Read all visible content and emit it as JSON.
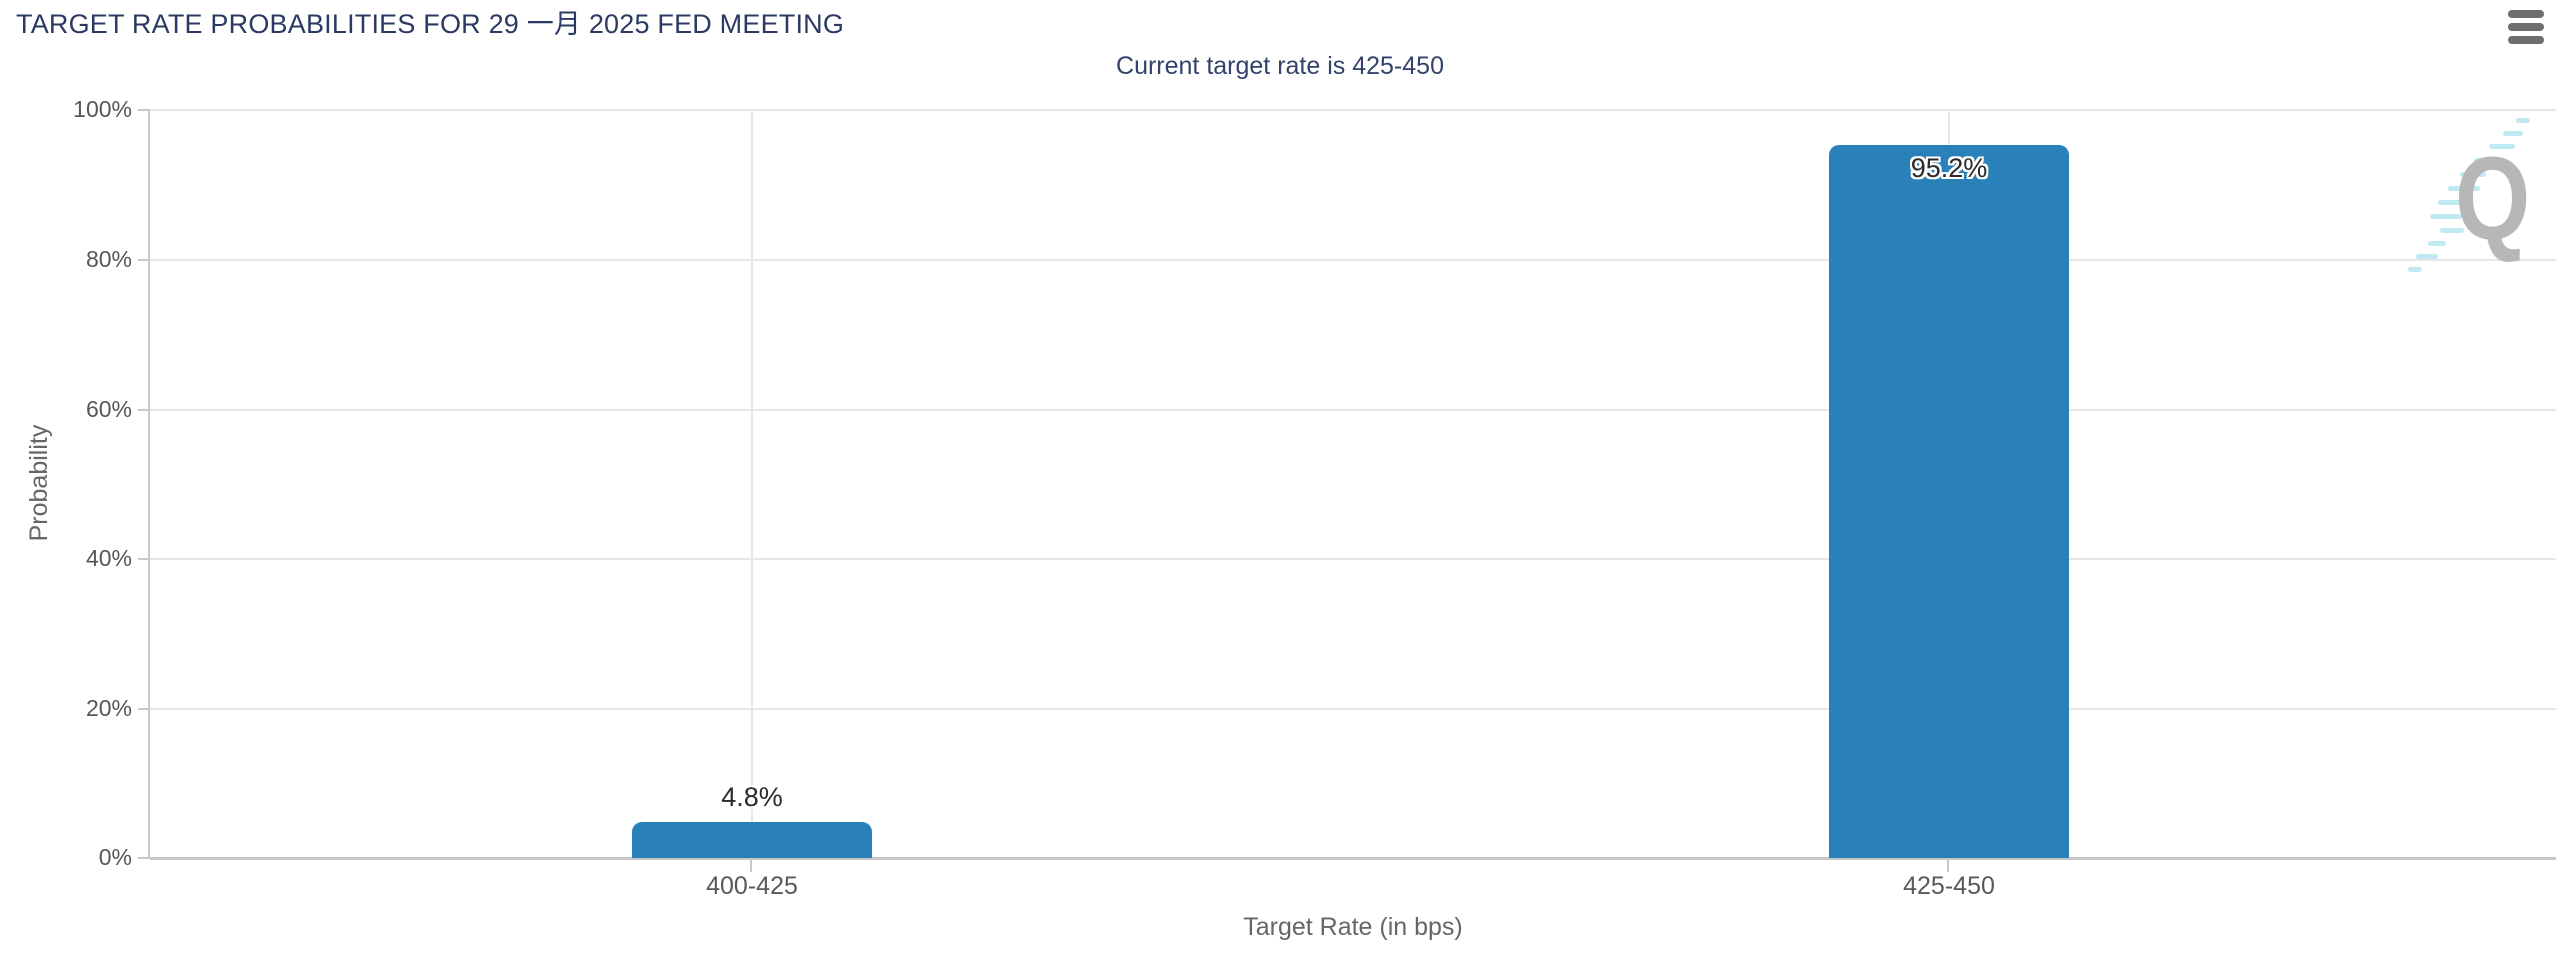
{
  "header": {
    "title": "TARGET RATE PROBABILITIES FOR 29 一月 2025 FED MEETING",
    "menu_tooltip": "Chart context menu"
  },
  "chart_data": {
    "type": "bar",
    "title": "TARGET RATE PROBABILITIES FOR 29 一月 2025 FED MEETING",
    "subtitle": "Current target rate is 425-450",
    "categories": [
      "400-425",
      "425-450"
    ],
    "values": [
      4.8,
      95.2
    ],
    "value_labels": [
      "4.8%",
      "95.2%"
    ],
    "xlabel": "Target Rate (in bps)",
    "ylabel": "Probability",
    "ylim": [
      0,
      100
    ],
    "ytick_labels": [
      "0%",
      "20%",
      "40%",
      "60%",
      "80%",
      "100%"
    ],
    "grid": true,
    "legend_position": "none",
    "bar_color": "#2a80b9"
  },
  "watermark": {
    "letter": "Q"
  },
  "colors": {
    "title_text": "#2b3a62",
    "subtitle_text": "#32426b",
    "bar": "#2a80b9",
    "axis_tick_text": "#575757",
    "axis_title_text": "#666666",
    "gridline": "#e6e6e6",
    "axis_line": "#c9c9c9",
    "data_label_text": "#2b2b2b",
    "menu_icon": "#6e6e6e",
    "watermark_letter": "#b7b7b7",
    "watermark_dash": "#bfeaf2"
  }
}
